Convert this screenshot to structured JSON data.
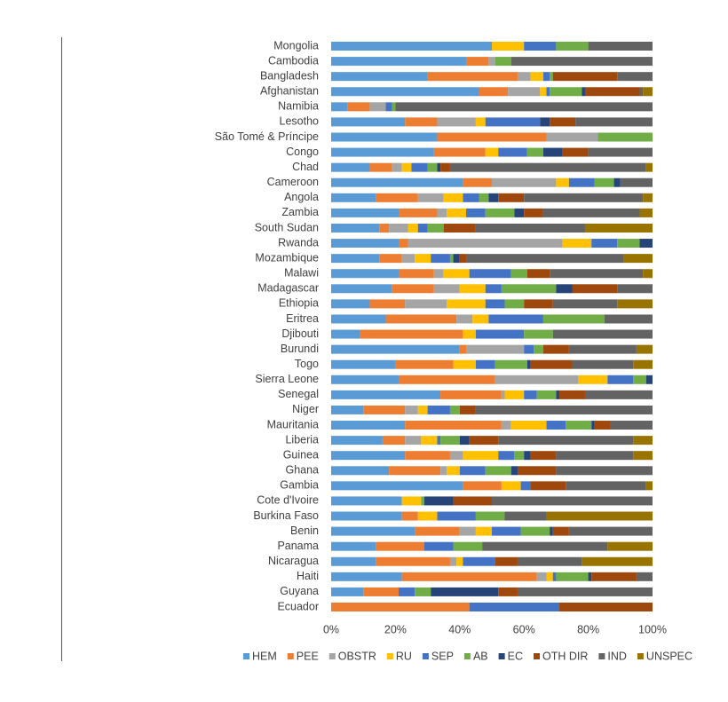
{
  "chart_data": {
    "type": "stacked-barh",
    "categories": [
      "Mongolia",
      "Cambodia",
      "Bangladesh",
      "Afghanistan",
      "Namibia",
      "Lesotho",
      "São Tomé & Príncipe",
      "Congo",
      "Chad",
      "Cameroon",
      "Angola",
      "Zambia",
      "South Sudan",
      "Rwanda",
      "Mozambique",
      "Malawi",
      "Madagascar",
      "Ethiopia",
      "Eritrea",
      "Djibouti",
      "Burundi",
      "Togo",
      "Sierra Leone",
      "Senegal",
      "Niger",
      "Mauritania",
      "Liberia",
      "Guinea",
      "Ghana",
      "Gambia",
      "Cote d'Ivoire",
      "Burkina Faso",
      "Benin",
      "Panama",
      "Nicaragua",
      "Haiti",
      "Guyana",
      "Ecuador"
    ],
    "series": [
      {
        "name": "HEM",
        "color": "#5b9bd5",
        "values": [
          50,
          42,
          30,
          46,
          5,
          23,
          33,
          32,
          12,
          41,
          14,
          21,
          15,
          21,
          15,
          21,
          19,
          12,
          17,
          9,
          40,
          20,
          21,
          34,
          10,
          23,
          16,
          23,
          18,
          41,
          22,
          22,
          26,
          14,
          14,
          22,
          10,
          0
        ]
      },
      {
        "name": "PEE",
        "color": "#ed7d31",
        "values": [
          0,
          7,
          28,
          9,
          7,
          10,
          34,
          16,
          7,
          9,
          13,
          12,
          3,
          3,
          7,
          11,
          13,
          11,
          22,
          32,
          2,
          18,
          30,
          19,
          13,
          30,
          7,
          14,
          16,
          12,
          0,
          5,
          14,
          15,
          23,
          42,
          11,
          43
        ]
      },
      {
        "name": "OBSTR",
        "color": "#a5a5a5",
        "values": [
          0,
          2,
          4,
          10,
          5,
          12,
          16,
          0,
          3,
          20,
          8,
          3,
          6,
          48,
          4,
          3,
          8,
          13,
          5,
          0,
          18,
          0,
          26,
          1,
          4,
          3,
          5,
          4,
          2,
          0,
          0,
          0,
          5,
          0,
          2,
          3,
          0,
          0
        ]
      },
      {
        "name": "RU",
        "color": "#ffc000",
        "values": [
          10,
          0,
          4,
          2,
          0,
          3,
          0,
          4,
          3,
          4,
          6,
          6,
          3,
          9,
          5,
          8,
          8,
          12,
          5,
          4,
          0,
          7,
          9,
          6,
          3,
          11,
          5,
          11,
          4,
          6,
          6,
          6,
          5,
          0,
          2,
          2,
          0,
          0
        ]
      },
      {
        "name": "SEP",
        "color": "#4472c4",
        "values": [
          10,
          0,
          2,
          1,
          2,
          17,
          0,
          9,
          5,
          8,
          5,
          6,
          3,
          8,
          6,
          13,
          5,
          6,
          17,
          15,
          3,
          6,
          8,
          4,
          7,
          6,
          1,
          5,
          8,
          3,
          0,
          12,
          9,
          9,
          10,
          1,
          5,
          28
        ]
      },
      {
        "name": "AB",
        "color": "#70ad47",
        "values": [
          10,
          5,
          1,
          10,
          1,
          0,
          17,
          5,
          3,
          6,
          3,
          9,
          5,
          7,
          1,
          5,
          17,
          6,
          19,
          9,
          3,
          10,
          4,
          6,
          3,
          8,
          6,
          3,
          8,
          0,
          1,
          9,
          9,
          9,
          0,
          10,
          5,
          0
        ]
      },
      {
        "name": "EC",
        "color": "#264478",
        "values": [
          0,
          0,
          0,
          1,
          0,
          3,
          0,
          6,
          1,
          2,
          3,
          3,
          0,
          4,
          2,
          0,
          5,
          0,
          0,
          0,
          0,
          1,
          2,
          1,
          0,
          1,
          3,
          2,
          2,
          0,
          9,
          0,
          1,
          0,
          0,
          1,
          21,
          0
        ]
      },
      {
        "name": "OTH DIR",
        "color": "#9e480e",
        "values": [
          0,
          0,
          20,
          17,
          0,
          8,
          0,
          8,
          3,
          0,
          8,
          6,
          10,
          0,
          2,
          7,
          14,
          9,
          0,
          0,
          8,
          13,
          0,
          8,
          5,
          5,
          9,
          8,
          12,
          11,
          12,
          0,
          5,
          0,
          7,
          14,
          6,
          29
        ]
      },
      {
        "name": "IND",
        "color": "#636363",
        "values": [
          20,
          44,
          11,
          1,
          80,
          24,
          0,
          20,
          61,
          10,
          37,
          30,
          34,
          0,
          49,
          29,
          11,
          20,
          15,
          31,
          21,
          19,
          0,
          21,
          55,
          13,
          42,
          24,
          30,
          25,
          50,
          13,
          26,
          39,
          20,
          5,
          42,
          0
        ]
      },
      {
        "name": "UNSPEC",
        "color": "#997300",
        "values": [
          0,
          0,
          0,
          3,
          0,
          0,
          0,
          0,
          2,
          0,
          3,
          4,
          21,
          0,
          9,
          3,
          0,
          11,
          0,
          0,
          5,
          6,
          0,
          0,
          0,
          0,
          6,
          6,
          0,
          2,
          0,
          33,
          0,
          14,
          22,
          0,
          0,
          0
        ]
      }
    ],
    "xlim": [
      0,
      100
    ],
    "xticks": [
      {
        "value": 0,
        "label": "0%"
      },
      {
        "value": 20,
        "label": "20%"
      },
      {
        "value": 40,
        "label": "40%"
      },
      {
        "value": 60,
        "label": "60%"
      },
      {
        "value": 80,
        "label": "80%"
      },
      {
        "value": 100,
        "label": "100%"
      }
    ]
  }
}
